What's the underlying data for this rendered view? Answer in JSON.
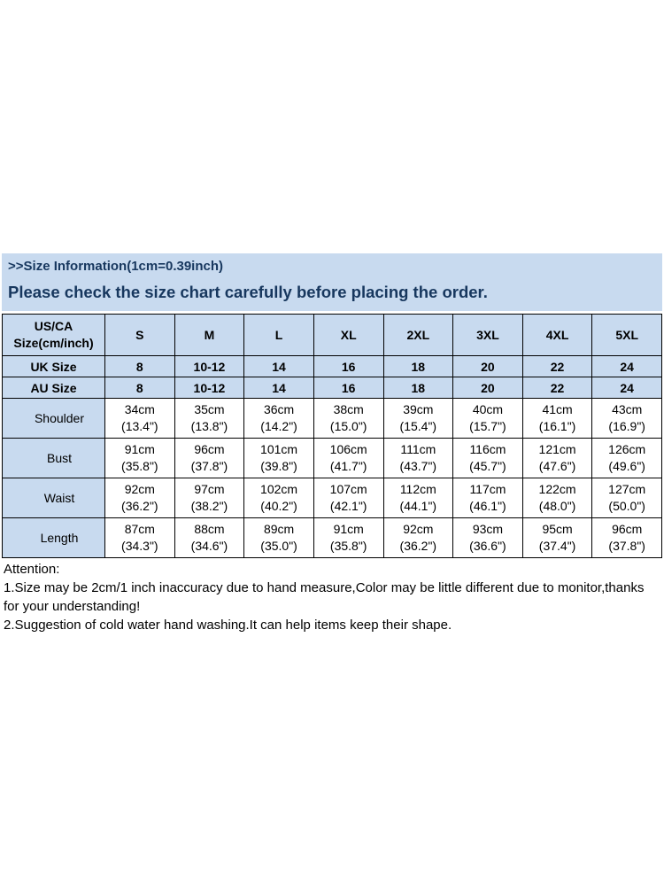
{
  "colors": {
    "table_fill": "#c8daef",
    "heading_text": "#17375e",
    "table_border": "#000000",
    "body_text": "#000000",
    "page_background": "#ffffff"
  },
  "header": {
    "size_info": ">>Size Information(1cm=0.39inch)",
    "notice": "Please check the size chart carefully before placing the order."
  },
  "table": {
    "corner": "US/CA Size(cm/inch)",
    "sizes": [
      "S",
      "M",
      "L",
      "XL",
      "2XL",
      "3XL",
      "4XL",
      "5XL"
    ],
    "uk_row": {
      "label": "UK Size",
      "values": [
        "8",
        "10-12",
        "14",
        "16",
        "18",
        "20",
        "22",
        "24"
      ]
    },
    "au_row": {
      "label": "AU Size",
      "values": [
        "8",
        "10-12",
        "14",
        "16",
        "18",
        "20",
        "22",
        "24"
      ]
    },
    "measurements": [
      {
        "label": "Shoulder",
        "values": [
          {
            "cm": "34cm",
            "in": "(13.4\")"
          },
          {
            "cm": "35cm",
            "in": "(13.8\")"
          },
          {
            "cm": "36cm",
            "in": "(14.2\")"
          },
          {
            "cm": "38cm",
            "in": "(15.0\")"
          },
          {
            "cm": "39cm",
            "in": "(15.4\")"
          },
          {
            "cm": "40cm",
            "in": "(15.7\")"
          },
          {
            "cm": "41cm",
            "in": "(16.1\")"
          },
          {
            "cm": "43cm",
            "in": "(16.9\")"
          }
        ]
      },
      {
        "label": "Bust",
        "values": [
          {
            "cm": "91cm",
            "in": "(35.8\")"
          },
          {
            "cm": "96cm",
            "in": "(37.8\")"
          },
          {
            "cm": "101cm",
            "in": "(39.8\")"
          },
          {
            "cm": "106cm",
            "in": "(41.7\")"
          },
          {
            "cm": "111cm",
            "in": "(43.7\")"
          },
          {
            "cm": "116cm",
            "in": "(45.7\")"
          },
          {
            "cm": "121cm",
            "in": "(47.6\")"
          },
          {
            "cm": "126cm",
            "in": "(49.6\")"
          }
        ]
      },
      {
        "label": "Waist",
        "values": [
          {
            "cm": "92cm",
            "in": "(36.2\")"
          },
          {
            "cm": "97cm",
            "in": "(38.2\")"
          },
          {
            "cm": "102cm",
            "in": "(40.2\")"
          },
          {
            "cm": "107cm",
            "in": "(42.1\")"
          },
          {
            "cm": "112cm",
            "in": "(44.1\")"
          },
          {
            "cm": "117cm",
            "in": "(46.1\")"
          },
          {
            "cm": "122cm",
            "in": "(48.0\")"
          },
          {
            "cm": "127cm",
            "in": "(50.0\")"
          }
        ]
      },
      {
        "label": "Length",
        "values": [
          {
            "cm": "87cm",
            "in": "(34.3\")"
          },
          {
            "cm": "88cm",
            "in": "(34.6\")"
          },
          {
            "cm": "89cm",
            "in": "(35.0\")"
          },
          {
            "cm": "91cm",
            "in": "(35.8\")"
          },
          {
            "cm": "92cm",
            "in": "(36.2\")"
          },
          {
            "cm": "93cm",
            "in": "(36.6\")"
          },
          {
            "cm": "95cm",
            "in": "(37.4\")"
          },
          {
            "cm": "96cm",
            "in": "(37.8\")"
          }
        ]
      }
    ]
  },
  "attention": {
    "title": "Attention:",
    "line1": "1.Size may be 2cm/1 inch inaccuracy due to hand measure,Color may be little different due to monitor,thanks for your understanding!",
    "line2": "2.Suggestion of cold water hand washing.It can help items keep their shape."
  }
}
